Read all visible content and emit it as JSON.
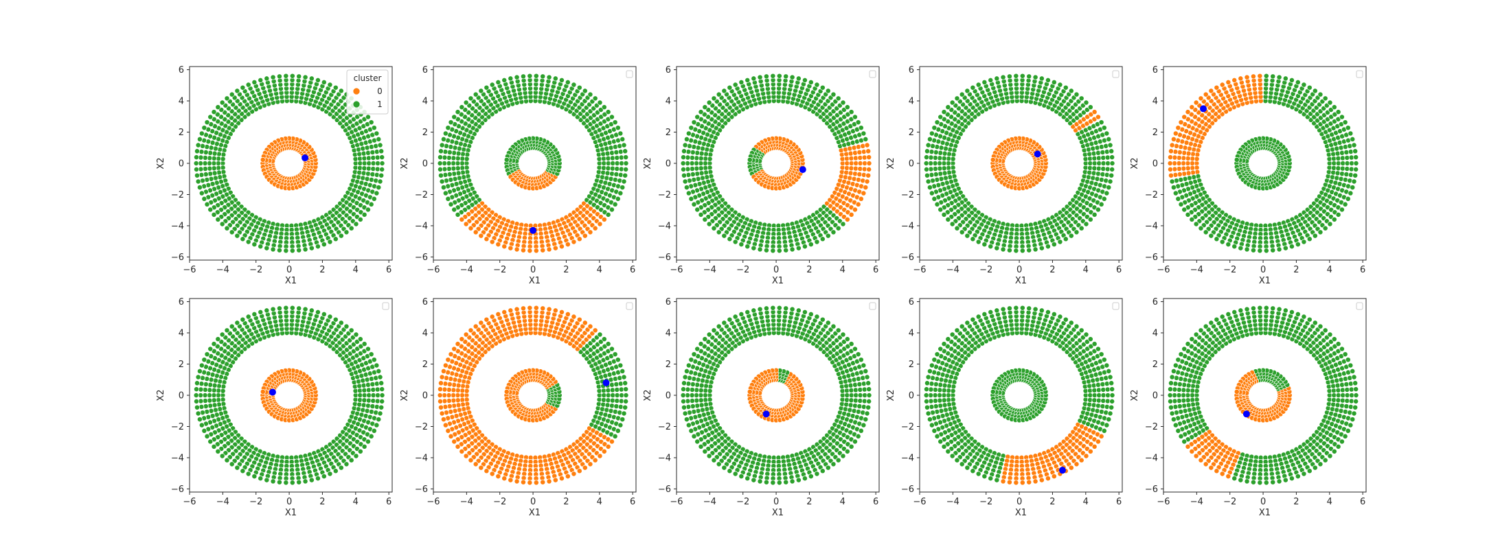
{
  "figure": {
    "rows": 2,
    "cols": 5
  },
  "colors": {
    "cluster_0": "#ff7f0e",
    "cluster_1": "#2ca02c",
    "center": "#0000ff",
    "point_edge": "#ffffff",
    "axes_edge": "#262626"
  },
  "legend": {
    "title": "cluster",
    "entries": [
      {
        "label": "0",
        "color": "#ff7f0e"
      },
      {
        "label": "1",
        "color": "#2ca02c"
      }
    ]
  },
  "chart_data": [
    {
      "type": "scatter",
      "xlabel": "X1",
      "ylabel": "X2",
      "xlim": [
        -6,
        6.2
      ],
      "ylim": [
        -6.2,
        6.2
      ],
      "xticks": [
        -6,
        -4,
        -2,
        0,
        2,
        4,
        6
      ],
      "yticks": [
        -6,
        -4,
        -2,
        0,
        2,
        4,
        6
      ],
      "inner_ring": {
        "r_min": 1.0,
        "r_max": 1.6,
        "orange_from": -180,
        "orange_to": 180
      },
      "outer_ring": {
        "r_min": 4.0,
        "r_max": 5.6,
        "orange_from": 0,
        "orange_to": 0
      },
      "centroid": [
        0.95,
        0.35
      ],
      "legend": "full"
    },
    {
      "type": "scatter",
      "xlabel": "X1",
      "ylabel": "X2",
      "xlim": [
        -6,
        6.2
      ],
      "ylim": [
        -6.2,
        6.2
      ],
      "xticks": [
        -6,
        -4,
        -2,
        0,
        2,
        4,
        6
      ],
      "yticks": [
        -6,
        -4,
        -2,
        0,
        2,
        4,
        6
      ],
      "inner_ring": {
        "r_min": 1.0,
        "r_max": 1.6,
        "orange_from": -155,
        "orange_to": -25
      },
      "outer_ring": {
        "r_min": 4.0,
        "r_max": 5.6,
        "orange_from": -140,
        "orange_to": -38
      },
      "centroid": [
        0.0,
        -4.3
      ],
      "legend": "empty"
    },
    {
      "type": "scatter",
      "xlabel": "X1",
      "ylabel": "X2",
      "xlim": [
        -6,
        6.2
      ],
      "ylim": [
        -6.2,
        6.2
      ],
      "xticks": [
        -6,
        -4,
        -2,
        0,
        2,
        4,
        6
      ],
      "yticks": [
        -6,
        -4,
        -2,
        0,
        2,
        4,
        6
      ],
      "inner_ring": {
        "r_min": 1.0,
        "r_max": 1.6,
        "orange_from": -150,
        "orange_to": 145
      },
      "outer_ring": {
        "r_min": 4.0,
        "r_max": 5.6,
        "orange_from": -40,
        "orange_to": 12
      },
      "centroid": [
        1.6,
        -0.4
      ],
      "legend": "empty"
    },
    {
      "type": "scatter",
      "xlabel": "X1",
      "ylabel": "X2",
      "xlim": [
        -6,
        6.2
      ],
      "ylim": [
        -6.2,
        6.2
      ],
      "xticks": [
        -6,
        -4,
        -2,
        0,
        2,
        4,
        6
      ],
      "yticks": [
        -6,
        -4,
        -2,
        0,
        2,
        4,
        6
      ],
      "inner_ring": {
        "r_min": 1.0,
        "r_max": 1.6,
        "orange_from": -180,
        "orange_to": 180
      },
      "outer_ring": {
        "r_min": 4.0,
        "r_max": 5.6,
        "orange_from": 30,
        "orange_to": 36
      },
      "centroid": [
        1.1,
        0.6
      ],
      "legend": "empty"
    },
    {
      "type": "scatter",
      "xlabel": "X1",
      "ylabel": "X2",
      "xlim": [
        -6,
        6.2
      ],
      "ylim": [
        -6.2,
        6.2
      ],
      "xticks": [
        -6,
        -4,
        -2,
        0,
        2,
        4,
        6
      ],
      "yticks": [
        -6,
        -4,
        -2,
        0,
        2,
        4,
        6
      ],
      "inner_ring": {
        "r_min": 1.0,
        "r_max": 1.6,
        "orange_from": 0,
        "orange_to": 0
      },
      "outer_ring": {
        "r_min": 4.0,
        "r_max": 5.6,
        "orange_from": 90,
        "orange_to": 190
      },
      "centroid": [
        -3.6,
        3.5
      ],
      "legend": "empty"
    },
    {
      "type": "scatter",
      "xlabel": "X1",
      "ylabel": "X2",
      "xlim": [
        -6,
        6.2
      ],
      "ylim": [
        -6.2,
        6.2
      ],
      "xticks": [
        -6,
        -4,
        -2,
        0,
        2,
        4,
        6
      ],
      "yticks": [
        -6,
        -4,
        -2,
        0,
        2,
        4,
        6
      ],
      "inner_ring": {
        "r_min": 1.0,
        "r_max": 1.6,
        "orange_from": -180,
        "orange_to": 180
      },
      "outer_ring": {
        "r_min": 4.0,
        "r_max": 5.6,
        "orange_from": 0,
        "orange_to": 0
      },
      "centroid": [
        -1.0,
        0.2
      ],
      "legend": "empty"
    },
    {
      "type": "scatter",
      "xlabel": "X1",
      "ylabel": "X2",
      "xlim": [
        -6,
        6.2
      ],
      "ylim": [
        -6.2,
        6.2
      ],
      "xticks": [
        -6,
        -4,
        -2,
        0,
        2,
        4,
        6
      ],
      "yticks": [
        -6,
        -4,
        -2,
        0,
        2,
        4,
        6
      ],
      "inner_ring": {
        "r_min": 1.0,
        "r_max": 1.6,
        "orange_from": 30,
        "orange_to": 330
      },
      "outer_ring": {
        "r_min": 4.0,
        "r_max": 5.6,
        "orange_from": 45,
        "orange_to": 330
      },
      "centroid": [
        4.4,
        0.8
      ],
      "legend": "empty"
    },
    {
      "type": "scatter",
      "xlabel": "X1",
      "ylabel": "X2",
      "xlim": [
        -6,
        6.2
      ],
      "ylim": [
        -6.2,
        6.2
      ],
      "xticks": [
        -6,
        -4,
        -2,
        0,
        2,
        4,
        6
      ],
      "yticks": [
        -6,
        -4,
        -2,
        0,
        2,
        4,
        6
      ],
      "inner_ring": {
        "r_min": 1.0,
        "r_max": 1.6,
        "orange_from": 90,
        "orange_to": 420
      },
      "outer_ring": {
        "r_min": 4.0,
        "r_max": 5.6,
        "orange_from": 0,
        "orange_to": 0
      },
      "centroid": [
        -0.6,
        -1.2
      ],
      "legend": "empty"
    },
    {
      "type": "scatter",
      "xlabel": "X1",
      "ylabel": "X2",
      "xlim": [
        -6,
        6.2
      ],
      "ylim": [
        -6.2,
        6.2
      ],
      "xticks": [
        -6,
        -4,
        -2,
        0,
        2,
        4,
        6
      ],
      "yticks": [
        -6,
        -4,
        -2,
        0,
        2,
        4,
        6
      ],
      "inner_ring": {
        "r_min": 1.0,
        "r_max": 1.6,
        "orange_from": 0,
        "orange_to": 0
      },
      "outer_ring": {
        "r_min": 4.0,
        "r_max": 5.6,
        "orange_from": -100,
        "orange_to": -25
      },
      "centroid": [
        2.6,
        -4.8
      ],
      "legend": "empty"
    },
    {
      "type": "scatter",
      "xlabel": "X1",
      "ylabel": "X2",
      "xlim": [
        -6,
        6.2
      ],
      "ylim": [
        -6.2,
        6.2
      ],
      "xticks": [
        -6,
        -4,
        -2,
        0,
        2,
        4,
        6
      ],
      "yticks": [
        -6,
        -4,
        -2,
        0,
        2,
        4,
        6
      ],
      "inner_ring": {
        "r_min": 1.0,
        "r_max": 1.6,
        "orange_from": 110,
        "orange_to": 380
      },
      "outer_ring": {
        "r_min": 4.0,
        "r_max": 5.6,
        "orange_from": -145,
        "orange_to": -112
      },
      "centroid": [
        -1.0,
        -1.2
      ],
      "legend": "empty"
    }
  ]
}
